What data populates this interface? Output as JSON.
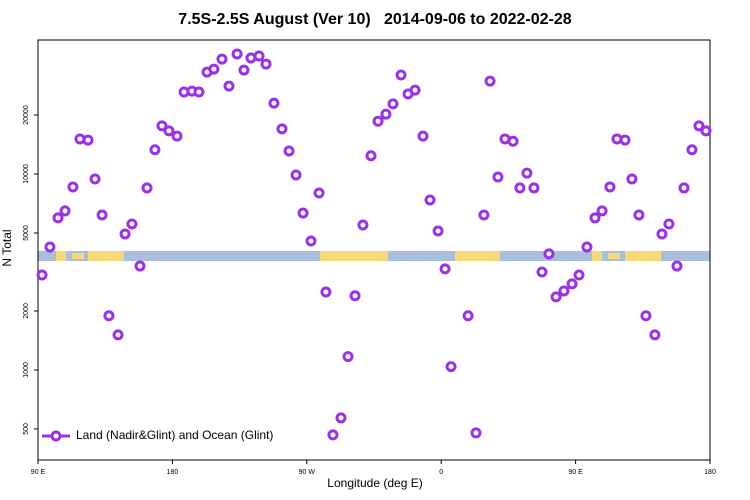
{
  "chart_data": {
    "type": "scatter",
    "title": "7.5S-2.5S August (Ver 10)   2014-09-06 to 2022-02-28",
    "xlabel": "Longitude (deg E)",
    "ylabel": "N Total",
    "log_y": true,
    "legend": "bottom-left",
    "xlim": [
      90,
      540
    ],
    "xticks": [
      {
        "value": 90,
        "label": "90 E"
      },
      180,
      {
        "value": 270,
        "label": "90 W"
      },
      {
        "value": 360,
        "label": "0"
      },
      {
        "value": 450,
        "label": "90 E"
      },
      {
        "value": 540,
        "label": "180"
      }
    ],
    "ylim": [
      347,
      48300
    ],
    "yticks": [
      500,
      1000,
      2000,
      5000,
      10000,
      20000
    ],
    "x": [
      92.7,
      98.0,
      103.4,
      108.1,
      113.4,
      118.1,
      123.5,
      128.2,
      132.9,
      137.5,
      143.6,
      148.3,
      152.9,
      158.3,
      163.0,
      168.3,
      173.0,
      177.7,
      183.1,
      187.8,
      193.1,
      197.8,
      203.2,
      207.8,
      213.2,
      217.9,
      223.3,
      227.9,
      232.6,
      238.0,
      242.7,
      248.0,
      253.4,
      258.1,
      262.8,
      267.5,
      272.8,
      278.2,
      282.8,
      287.5,
      292.9,
      297.6,
      302.3,
      307.6,
      313.0,
      317.7,
      323.0,
      327.7,
      333.1,
      337.8,
      342.5,
      347.8,
      352.5,
      357.9,
      362.6,
      366.6,
      378.0,
      383.3,
      388.6,
      392.7,
      398.0,
      402.7,
      408.1,
      412.7,
      417.4,
      422.1,
      427.5,
      432.2,
      436.9,
      442.2,
      447.6,
      452.3,
      457.6,
      463.0,
      467.7,
      473.0,
      477.7,
      483.1,
      487.7,
      492.4,
      497.1,
      503.1,
      507.8,
      512.5,
      517.9,
      522.6,
      527.9,
      532.6,
      537.3
    ],
    "series": [
      {
        "name": "Land (Nadir&Glint) and Ocean (Glint)",
        "color": "#9b30e8",
        "values": [
          3050,
          4240,
          5970,
          6480,
          8590,
          15100,
          14900,
          9430,
          6180,
          1890,
          1510,
          4940,
          5560,
          3390,
          8490,
          13300,
          17600,
          16600,
          15600,
          26200,
          26500,
          26200,
          33100,
          34300,
          38600,
          28100,
          41000,
          33900,
          39100,
          40000,
          36400,
          23000,
          17000,
          13100,
          9880,
          6320,
          4550,
          8000,
          2500,
          466,
          569,
          1170,
          2390,
          5490,
          12400,
          18600,
          20200,
          22800,
          32000,
          25600,
          26800,
          15600,
          7370,
          5120,
          3280,
          1040,
          1890,
          477,
          6180,
          29800,
          9650,
          15100,
          14700,
          8490,
          10100,
          8490,
          3160,
          3910,
          2360,
          2530,
          2750,
          3050,
          4240,
          5970,
          6480,
          8590,
          15100,
          14900,
          9430,
          6180,
          1890,
          1510,
          4940,
          5560,
          3390,
          8490,
          13300,
          17600,
          16600
        ]
      }
    ]
  }
}
